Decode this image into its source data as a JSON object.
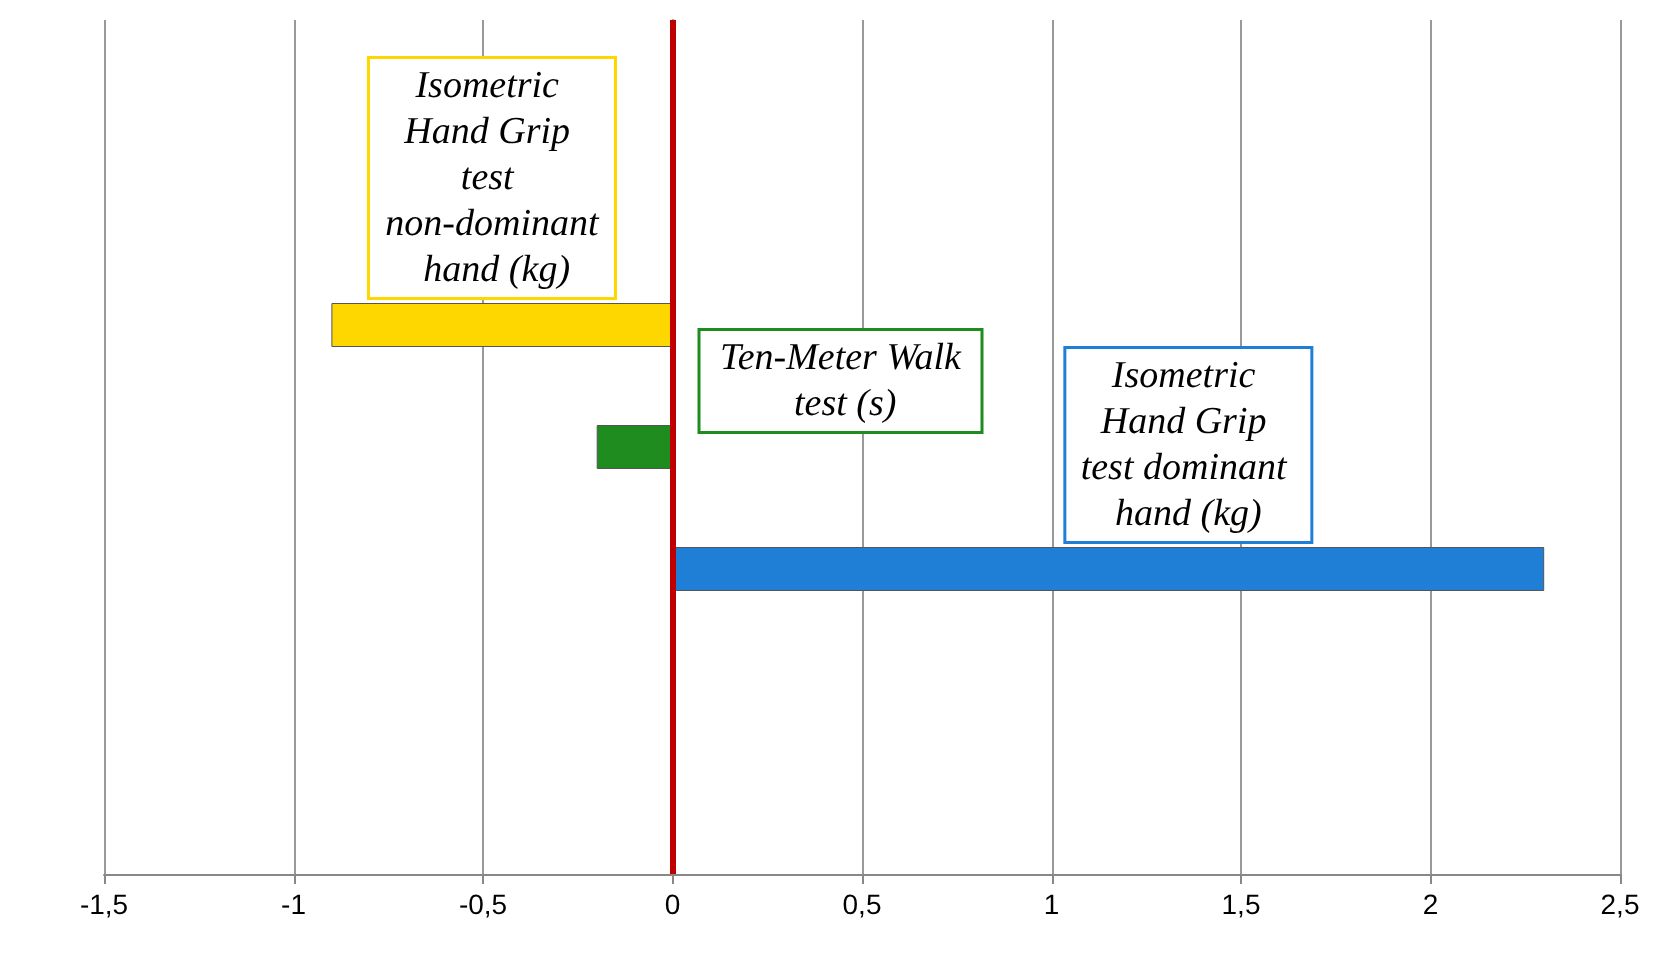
{
  "chart_data": {
    "type": "bar",
    "orientation": "horizontal",
    "categories": [
      null,
      null,
      null,
      null,
      null,
      null,
      null
    ],
    "values": [
      null,
      null,
      -0.9,
      -0.2,
      2.3,
      null,
      null
    ],
    "colors": [
      "#ffd700",
      "#ffd700",
      "#ffd700",
      "#1e8c1e",
      "#1f7fd6",
      "#1f7fd6",
      "#1f7fd6"
    ],
    "xlim": [
      -1.5,
      2.5
    ],
    "xticks": [
      {
        "value": -1.5,
        "label": "-1,5"
      },
      {
        "value": -1,
        "label": "-1"
      },
      {
        "value": -0.5,
        "label": "-0,5"
      },
      {
        "value": 0,
        "label": "0"
      },
      {
        "value": 0.5,
        "label": "0,5"
      },
      {
        "value": 1,
        "label": "1"
      },
      {
        "value": 1.5,
        "label": "1,5"
      },
      {
        "value": 2,
        "label": "2"
      },
      {
        "value": 2.5,
        "label": "2,5"
      }
    ],
    "grid": "x",
    "ref_lines": [
      {
        "axis": "x",
        "value": 0,
        "color": "#c00000"
      }
    ],
    "annotations": [
      "Isometric Hand Grip test non-dominant hand (kg)",
      "Ten-Meter Walk test (s)",
      "Isometric Hand Grip test dominant hand (kg)"
    ]
  }
}
